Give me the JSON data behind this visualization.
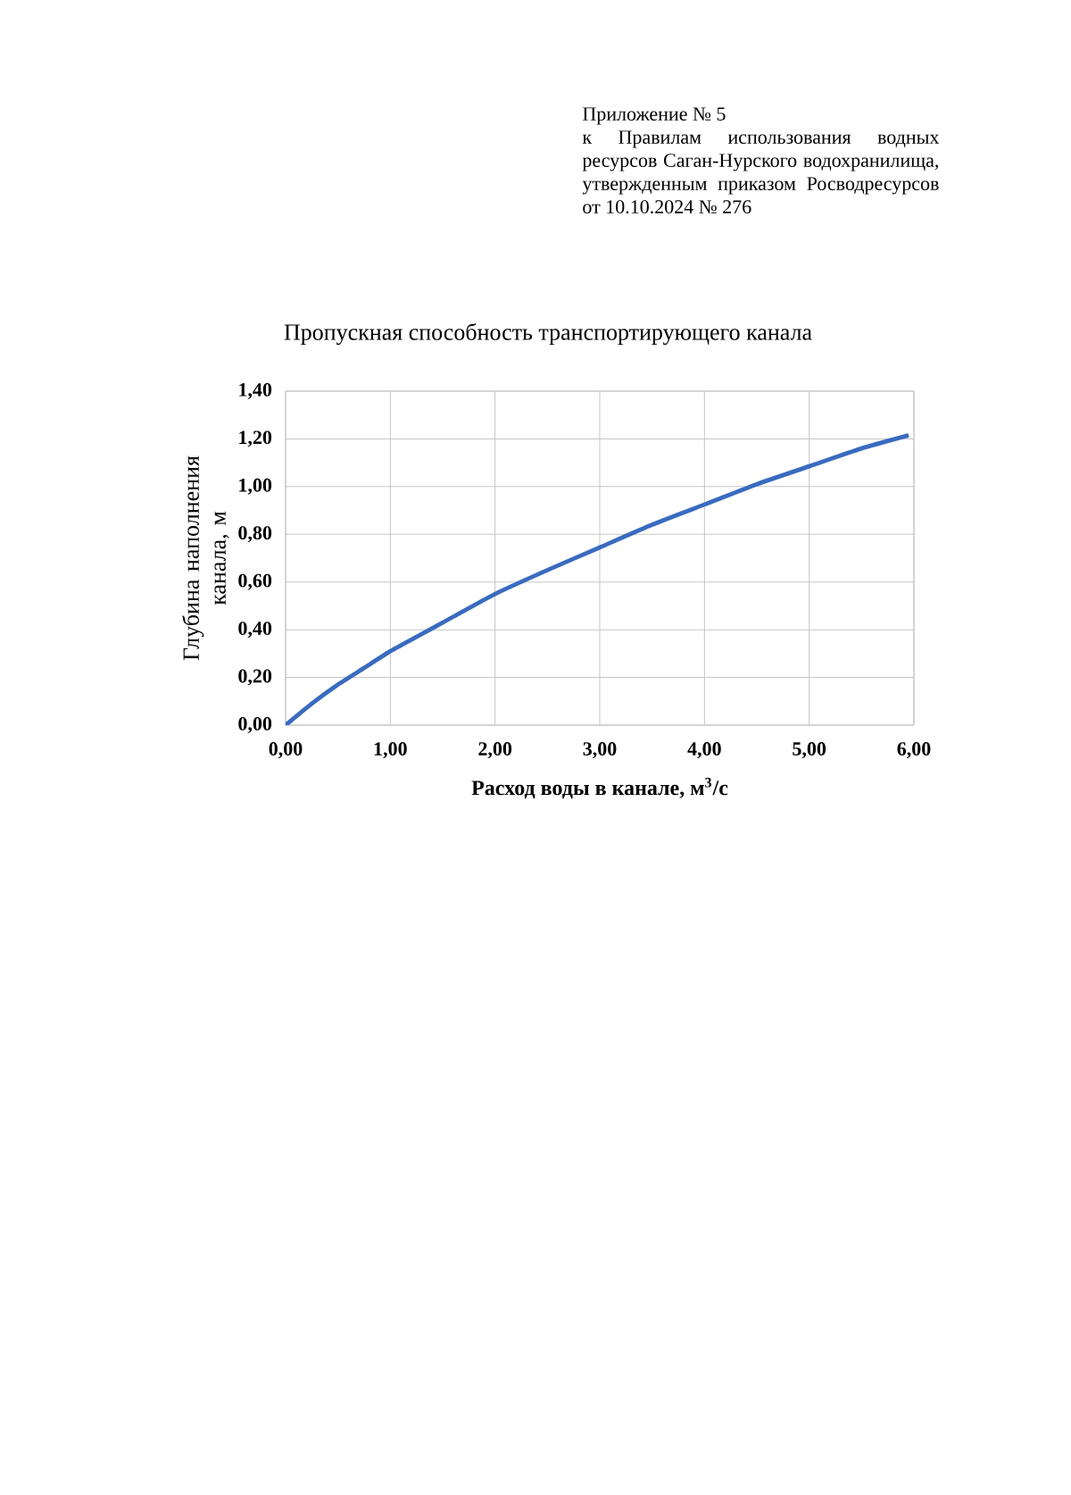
{
  "chart_data": {
    "type": "line",
    "title": "Пропускная способность транспортирующего канала",
    "xlabel": "Расход воды в канале, м$^{3}$/с",
    "ylabel": "Глубина наполнения канала, м",
    "annotations": [
      "Приложение № 5",
      "к Правилам использования водных ресурсов Саган-Нурского водохранилища, утвержденным приказом Росводресурсов от 10.10.2024 № 276"
    ],
    "x": [
      0,
      0.25,
      0.5,
      0.75,
      1,
      1.25,
      1.5,
      2,
      2.5,
      3,
      3.5,
      4,
      4.5,
      5,
      5.5,
      5.95
    ],
    "series": [
      {
        "color": "#3a6bbf",
        "values": [
          0,
          0.09,
          0.17,
          0.24,
          0.31,
          0.37,
          0.43,
          0.55,
          0.65,
          0.745,
          0.84,
          0.925,
          1.01,
          1.085,
          1.16,
          1.215
        ]
      }
    ],
    "xlim": [
      0,
      6
    ],
    "ylim": [
      0,
      1.4
    ],
    "xticks": [
      {
        "value": 0,
        "label": "0,00"
      },
      {
        "value": 1,
        "label": "1,00"
      },
      {
        "value": 2,
        "label": "2,00"
      },
      {
        "value": 3,
        "label": "3,00"
      },
      {
        "value": 4,
        "label": "4,00"
      },
      {
        "value": 5,
        "label": "5,00"
      },
      {
        "value": 6,
        "label": "6,00"
      }
    ],
    "yticks": [
      {
        "value": 0,
        "label": "0,00"
      },
      {
        "value": 0.2,
        "label": "0,20"
      },
      {
        "value": 0.4,
        "label": "0,40"
      },
      {
        "value": 0.6,
        "label": "0,60"
      },
      {
        "value": 0.8,
        "label": "0,80"
      },
      {
        "value": 1.0,
        "label": "1,00"
      },
      {
        "value": 1.2,
        "label": "1,20"
      },
      {
        "value": 1.4,
        "label": "1,40"
      }
    ],
    "grid": true,
    "marker": "none",
    "line_style": "solid"
  }
}
